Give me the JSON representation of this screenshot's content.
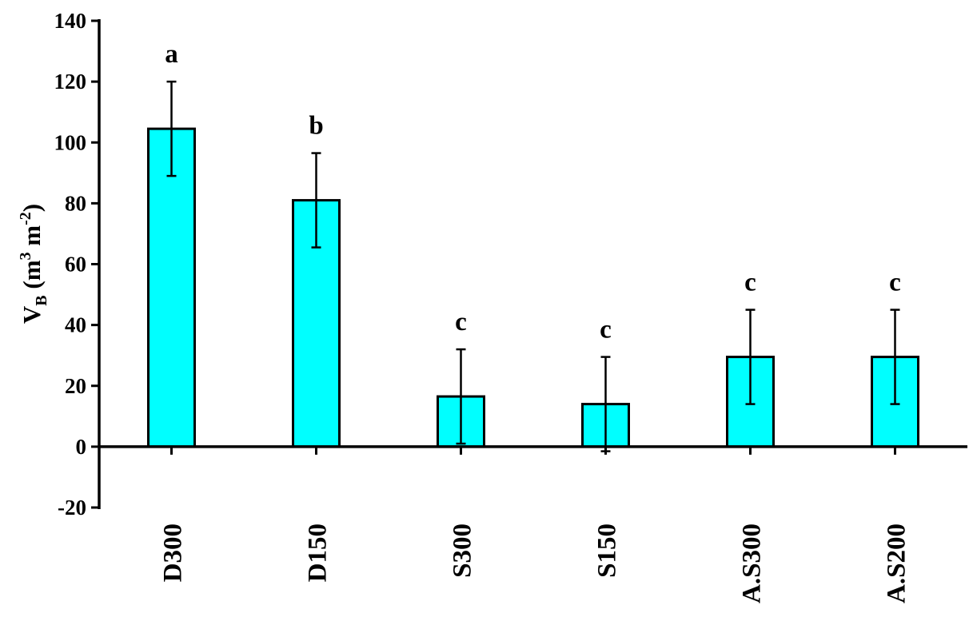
{
  "chart_data": {
    "type": "bar",
    "categories": [
      "D300",
      "D150",
      "S300",
      "S150",
      "A.S300",
      "A.S200"
    ],
    "values": [
      104.5,
      81,
      16.5,
      14,
      29.5,
      29.5
    ],
    "error_bars": [
      15.5,
      15.5,
      15.5,
      15.5,
      15.5,
      15.5
    ],
    "significance_letters": [
      "a",
      "b",
      "c",
      "c",
      "c",
      "c"
    ],
    "ylabel": {
      "main": "V",
      "sub": "B",
      "units_open": " (m",
      "sup1": "3",
      "units_mid": " m",
      "sup2": "-2",
      "units_close": ")"
    },
    "ylim": [
      -20,
      140
    ],
    "yticks": [
      -20,
      0,
      20,
      40,
      60,
      80,
      100,
      120,
      140
    ],
    "grid": false,
    "bar_color": "#00ffff",
    "edge_color": "#000000"
  }
}
